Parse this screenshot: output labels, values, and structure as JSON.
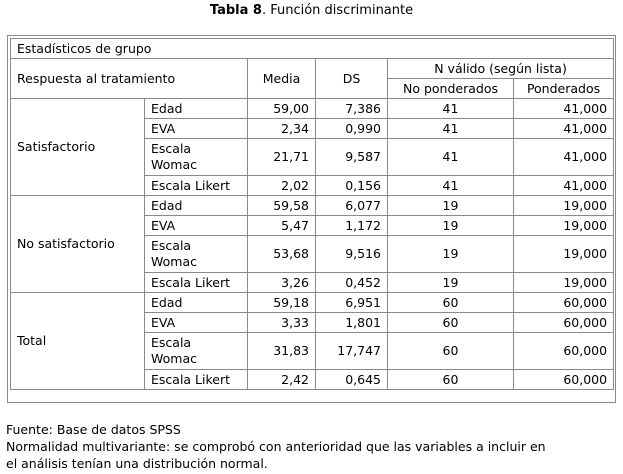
{
  "caption": {
    "bold": "Tabla 8",
    "rest": ". Función  discriminante"
  },
  "table": {
    "title": "Estadísticos de grupo",
    "headers": {
      "response": "Respuesta al tratamiento",
      "mean": "Media",
      "sd": "DS",
      "n_valid": "N válido (según lista)",
      "unweighted": "No ponderados",
      "weighted": "Ponderados"
    },
    "groups": [
      {
        "name": "Satisfactorio",
        "rows": [
          {
            "var": "Edad",
            "mean": "59,00",
            "sd": "7,386",
            "unweighted": "41",
            "weighted": "41,000"
          },
          {
            "var": "EVA",
            "mean": "2,34",
            "sd": "0,990",
            "unweighted": "41",
            "weighted": "41,000"
          },
          {
            "var_line1": "Escala",
            "var_line2": "Womac",
            "mean": "21,71",
            "sd": "9,587",
            "unweighted": "41",
            "weighted": "41,000"
          },
          {
            "var": "Escala Likert",
            "mean": "2,02",
            "sd": "0,156",
            "unweighted": "41",
            "weighted": "41,000"
          }
        ]
      },
      {
        "name": "No satisfactorio",
        "rows": [
          {
            "var": "Edad",
            "mean": "59,58",
            "sd": "6,077",
            "unweighted": "19",
            "weighted": "19,000"
          },
          {
            "var": "EVA",
            "mean": "5,47",
            "sd": "1,172",
            "unweighted": "19",
            "weighted": "19,000"
          },
          {
            "var_line1": "Escala",
            "var_line2": "Womac",
            "mean": "53,68",
            "sd": "9,516",
            "unweighted": "19",
            "weighted": "19,000"
          },
          {
            "var": "Escala Likert",
            "mean": "3,26",
            "sd": "0,452",
            "unweighted": "19",
            "weighted": "19,000"
          }
        ]
      },
      {
        "name": "Total",
        "rows": [
          {
            "var": "Edad",
            "mean": "59,18",
            "sd": "6,951",
            "unweighted": "60",
            "weighted": "60,000"
          },
          {
            "var": "EVA",
            "mean": "3,33",
            "sd": "1,801",
            "unweighted": "60",
            "weighted": "60,000"
          },
          {
            "var_line1": "Escala",
            "var_line2": "Womac",
            "mean": "31,83",
            "sd": "17,747",
            "unweighted": "60",
            "weighted": "60,000"
          },
          {
            "var": "Escala Likert",
            "mean": "2,42",
            "sd": "0,645",
            "unweighted": "60",
            "weighted": "60,000"
          }
        ]
      }
    ]
  },
  "footer": {
    "source": "Fuente: Base de datos SPSS",
    "note_line1": "Normalidad multivariante:  se comprobó con anterioridad  que las variables a incluir  en",
    "note_line2": "el análisis tenían una distribución  normal."
  }
}
